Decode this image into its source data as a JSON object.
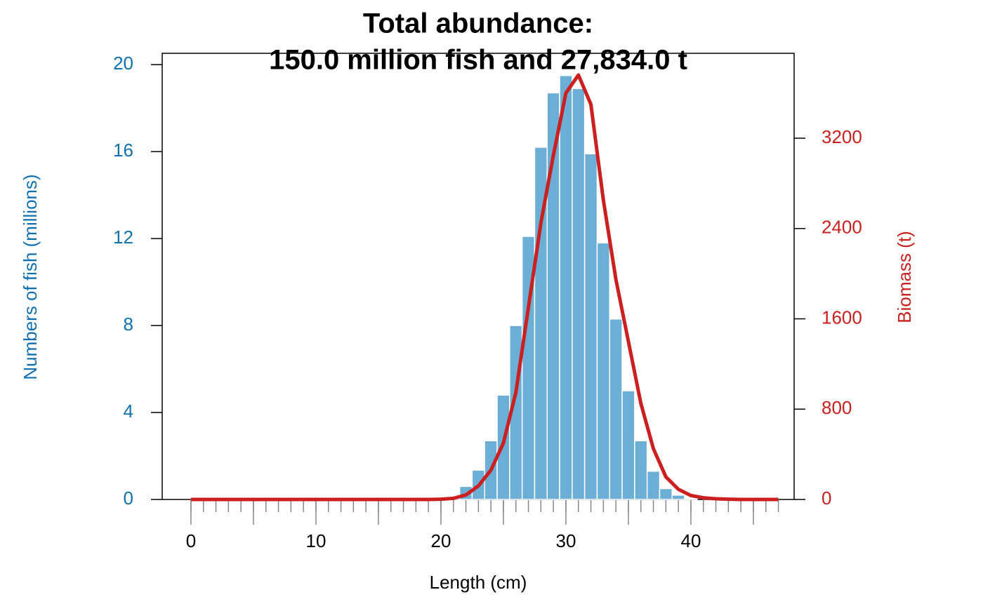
{
  "chart_data": {
    "type": "bar-line",
    "title": [
      "Total abundance:",
      "150.0 million fish and 27,834.0 t"
    ],
    "x_label": "Length (cm)",
    "y_label": "Numbers of fish (millions)",
    "y2_label": "Biomass (t)",
    "xlim": [
      -2.3,
      48.26
    ],
    "xticks": [
      0,
      10,
      20,
      30,
      40
    ],
    "x_tick_marks": [
      0,
      1,
      2,
      3,
      4,
      5,
      6,
      7,
      8,
      9,
      10,
      11,
      12,
      13,
      14,
      15,
      16,
      17,
      18,
      19,
      20,
      21,
      22,
      23,
      24,
      25,
      26,
      27,
      28,
      29,
      30,
      31,
      32,
      33,
      34,
      35,
      36,
      37,
      38,
      39,
      40,
      41,
      42,
      43,
      44,
      45,
      46,
      47
    ],
    "x_long_tick_marks": [
      0,
      5,
      10,
      15,
      20,
      25,
      30,
      35,
      40,
      45
    ],
    "ylim": [
      0,
      20.52
    ],
    "yticks": [
      0,
      4,
      8,
      12,
      16,
      20
    ],
    "y2lim": [
      0,
      3952
    ],
    "y2ticks": [
      0,
      800,
      1600,
      2400,
      3200
    ],
    "y_color": "#1170b0",
    "y2_color": "#c8201e",
    "series": [
      {
        "kind": "bar",
        "color": "#6baed6",
        "x": [
          21,
          22,
          23,
          24,
          25,
          26,
          27,
          28,
          29,
          30,
          31,
          32,
          33,
          34,
          35,
          36,
          37,
          38,
          39,
          40
        ],
        "values": [
          0.05,
          0.6,
          1.35,
          2.7,
          4.8,
          8.0,
          12.1,
          16.2,
          18.7,
          19.5,
          18.9,
          15.9,
          11.8,
          8.3,
          5.0,
          2.7,
          1.3,
          0.5,
          0.2,
          0.05
        ]
      },
      {
        "kind": "line",
        "color": "#cc1f1f",
        "axis": "y2",
        "x": [
          0,
          1,
          2,
          3,
          4,
          5,
          6,
          7,
          8,
          9,
          10,
          11,
          12,
          13,
          14,
          15,
          16,
          17,
          18,
          19,
          20,
          21,
          22,
          23,
          24,
          25,
          26,
          27,
          28,
          29,
          30,
          31,
          32,
          33,
          34,
          35,
          36,
          37,
          38,
          39,
          40,
          41,
          42,
          43,
          44,
          45,
          46,
          47
        ],
        "values": [
          0,
          0,
          0,
          0,
          0,
          0,
          0,
          0,
          0,
          0,
          0,
          0,
          0,
          0,
          0,
          0,
          0,
          0,
          0,
          0,
          2,
          10,
          40,
          120,
          260,
          500,
          950,
          1700,
          2450,
          3050,
          3600,
          3760,
          3500,
          2650,
          1950,
          1400,
          850,
          450,
          200,
          90,
          35,
          15,
          6,
          2,
          0,
          0,
          0,
          0
        ]
      }
    ]
  }
}
